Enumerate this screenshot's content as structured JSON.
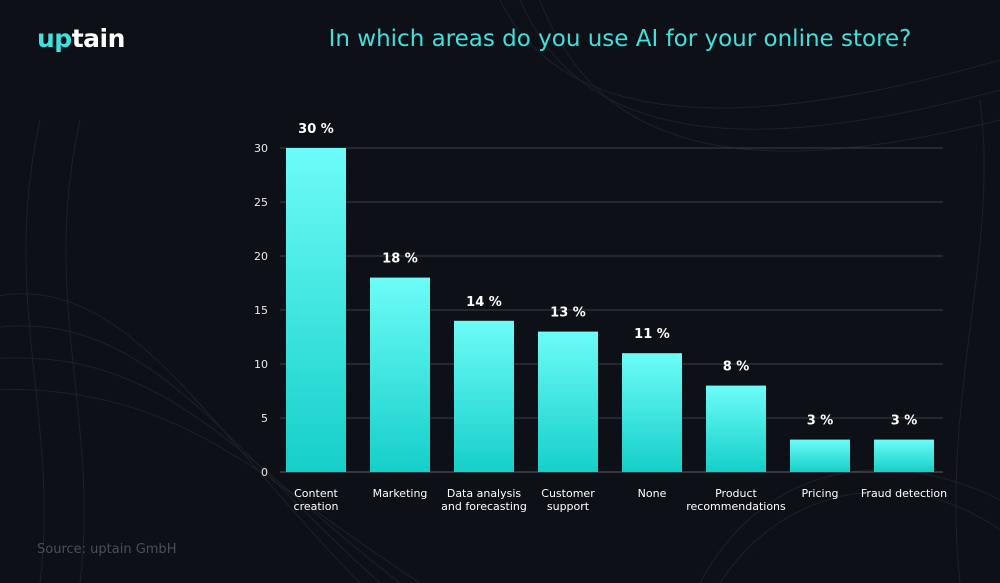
{
  "brand": {
    "logo_prefix": "up",
    "logo_suffix": "tain"
  },
  "source_text": "Source: uptain GmbH",
  "colors": {
    "accent": "#3fe0dd",
    "bar_top": "#6dfcf7",
    "bar_bottom": "#16cfc9",
    "background": "#0d1016"
  },
  "chart_data": {
    "type": "bar",
    "title": "In which areas do you use AI for your online store?",
    "categories": [
      [
        "Content",
        "creation"
      ],
      [
        "Marketing"
      ],
      [
        "Data analysis",
        "and forecasting"
      ],
      [
        "Customer",
        "support"
      ],
      [
        "None"
      ],
      [
        "Product",
        "recommendations"
      ],
      [
        "Pricing"
      ],
      [
        "Fraud detection"
      ]
    ],
    "values": [
      30,
      18,
      14,
      13,
      11,
      8,
      3,
      3
    ],
    "data_labels": [
      "30 %",
      "18 %",
      "14 %",
      "13 %",
      "11 %",
      "8 %",
      "3 %",
      "3 %"
    ],
    "ylim": [
      0,
      30
    ],
    "yticks": [
      0,
      5,
      10,
      15,
      20,
      25,
      30
    ],
    "grid": true,
    "xlabel": "",
    "ylabel": ""
  }
}
